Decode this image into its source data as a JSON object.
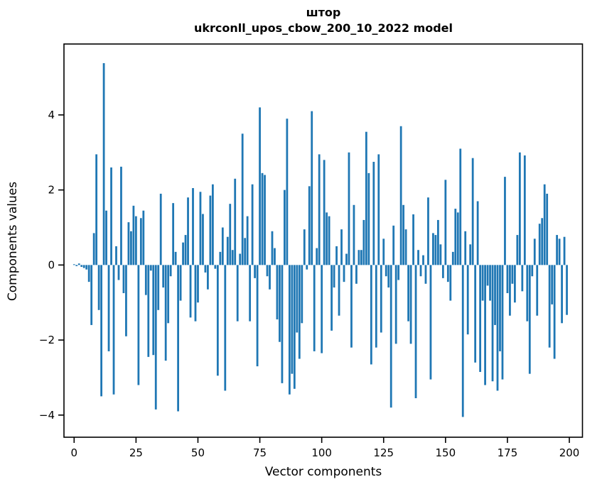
{
  "figure": {
    "title_line1": "штор",
    "title_line2": "ukrconll_upos_cbow_200_10_2022 model",
    "xlabel": "Vector components",
    "ylabel": "Components values"
  },
  "chart_data": {
    "type": "bar",
    "title": "штор\nukrconll_upos_cbow_200_10_2022 model",
    "xlabel": "Vector components",
    "ylabel": "Components values",
    "bar_color": "#1f77b4",
    "background_color": "#ffffff",
    "axis_color": "#000000",
    "grid": false,
    "legend_position": "none",
    "x_tick_labels": [
      "0",
      "25",
      "50",
      "75",
      "100",
      "125",
      "150",
      "175",
      "200"
    ],
    "x_tick_values": [
      0,
      25,
      50,
      75,
      100,
      125,
      150,
      175,
      200
    ],
    "y_tick_labels": [
      "−4",
      "−2",
      "0",
      "2",
      "4"
    ],
    "y_tick_values": [
      -4,
      -2,
      0,
      2,
      4
    ],
    "xlim": [
      -4.1,
      205.3
    ],
    "ylim": [
      -4.59,
      5.89
    ],
    "bar_width_units": 0.8,
    "n_components": 200,
    "values": [
      0.02,
      -0.03,
      0.04,
      -0.05,
      -0.08,
      -0.12,
      -0.45,
      -1.6,
      0.85,
      2.95,
      -1.2,
      -3.5,
      5.38,
      1.45,
      -2.3,
      2.6,
      -3.45,
      0.5,
      -0.4,
      2.62,
      -0.75,
      -1.9,
      1.14,
      0.9,
      1.58,
      1.3,
      -3.2,
      1.25,
      1.45,
      -0.8,
      -2.45,
      -0.15,
      -2.4,
      -3.85,
      -1.2,
      1.9,
      -0.6,
      -2.55,
      -1.55,
      -0.3,
      1.65,
      0.35,
      -3.9,
      -0.95,
      0.6,
      0.8,
      1.8,
      -1.4,
      2.05,
      -1.5,
      -1.0,
      1.95,
      1.36,
      -0.2,
      -0.65,
      1.85,
      2.15,
      -0.1,
      -2.95,
      0.35,
      1.0,
      -3.35,
      0.75,
      1.63,
      0.4,
      2.3,
      -1.5,
      0.3,
      3.5,
      0.72,
      1.3,
      -1.5,
      2.15,
      -0.35,
      -2.7,
      4.2,
      2.45,
      2.4,
      -0.3,
      -0.65,
      0.9,
      0.45,
      -1.45,
      -2.05,
      -3.15,
      2.0,
      3.9,
      -3.45,
      -2.9,
      -3.3,
      -1.8,
      -2.5,
      -1.55,
      0.95,
      -0.12,
      2.1,
      4.1,
      -2.3,
      0.45,
      2.95,
      -2.35,
      2.8,
      1.4,
      1.3,
      -1.75,
      -0.6,
      0.5,
      -1.35,
      0.95,
      -0.45,
      0.3,
      3.0,
      -2.2,
      1.6,
      -0.5,
      0.4,
      0.4,
      1.2,
      3.55,
      2.45,
      -2.65,
      2.75,
      -2.2,
      2.95,
      -1.8,
      0.7,
      -0.3,
      -0.6,
      -3.8,
      1.05,
      -2.1,
      -0.4,
      3.7,
      1.6,
      0.95,
      -1.5,
      -2.1,
      1.35,
      -3.55,
      0.4,
      -0.3,
      0.26,
      -0.5,
      1.8,
      -3.05,
      0.85,
      0.8,
      1.2,
      0.55,
      -0.35,
      2.27,
      -0.45,
      -0.95,
      0.35,
      1.5,
      1.4,
      3.1,
      -4.05,
      0.9,
      -1.85,
      0.55,
      2.85,
      -2.6,
      1.7,
      -2.85,
      -0.95,
      -3.2,
      -0.55,
      -0.95,
      -3.1,
      -1.6,
      -3.35,
      -2.3,
      -3.05,
      2.35,
      -0.75,
      -1.35,
      -0.5,
      -1.0,
      0.8,
      3.0,
      -0.7,
      2.92,
      -1.5,
      -2.9,
      -0.3,
      0.7,
      -1.35,
      1.1,
      1.25,
      2.15,
      1.9,
      -2.2,
      -1.05,
      -2.5,
      0.8,
      0.7,
      -1.55,
      0.75,
      -1.33
    ]
  }
}
